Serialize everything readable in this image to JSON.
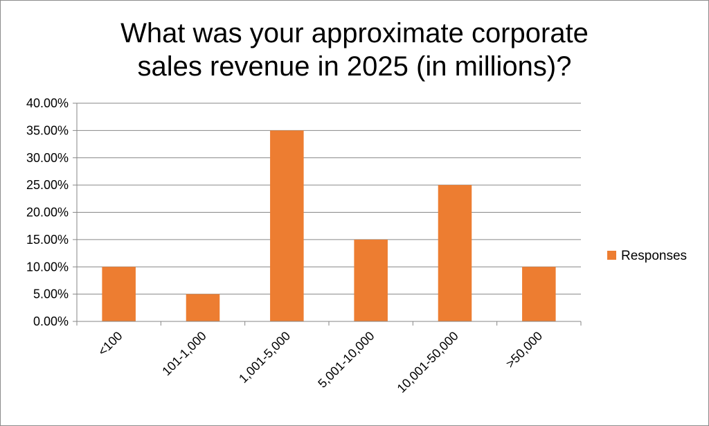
{
  "chart_data": {
    "type": "bar",
    "title_lines": [
      "What was your approximate corporate",
      "sales revenue in 2025 (in millions)?"
    ],
    "categories": [
      "<100",
      "101-1,000",
      "1,001-5,000",
      "5,001-10,000",
      "10,001-50,000",
      ">50,000"
    ],
    "series": [
      {
        "name": "Responses",
        "values": [
          10,
          5,
          35,
          15,
          25,
          10
        ],
        "color": "#ED7D31"
      }
    ],
    "ylim": [
      0,
      40
    ],
    "y_ticks": [
      "0.00%",
      "5.00%",
      "10.00%",
      "15.00%",
      "20.00%",
      "25.00%",
      "30.00%",
      "35.00%",
      "40.00%"
    ],
    "grid": true,
    "legend_position": "right"
  }
}
